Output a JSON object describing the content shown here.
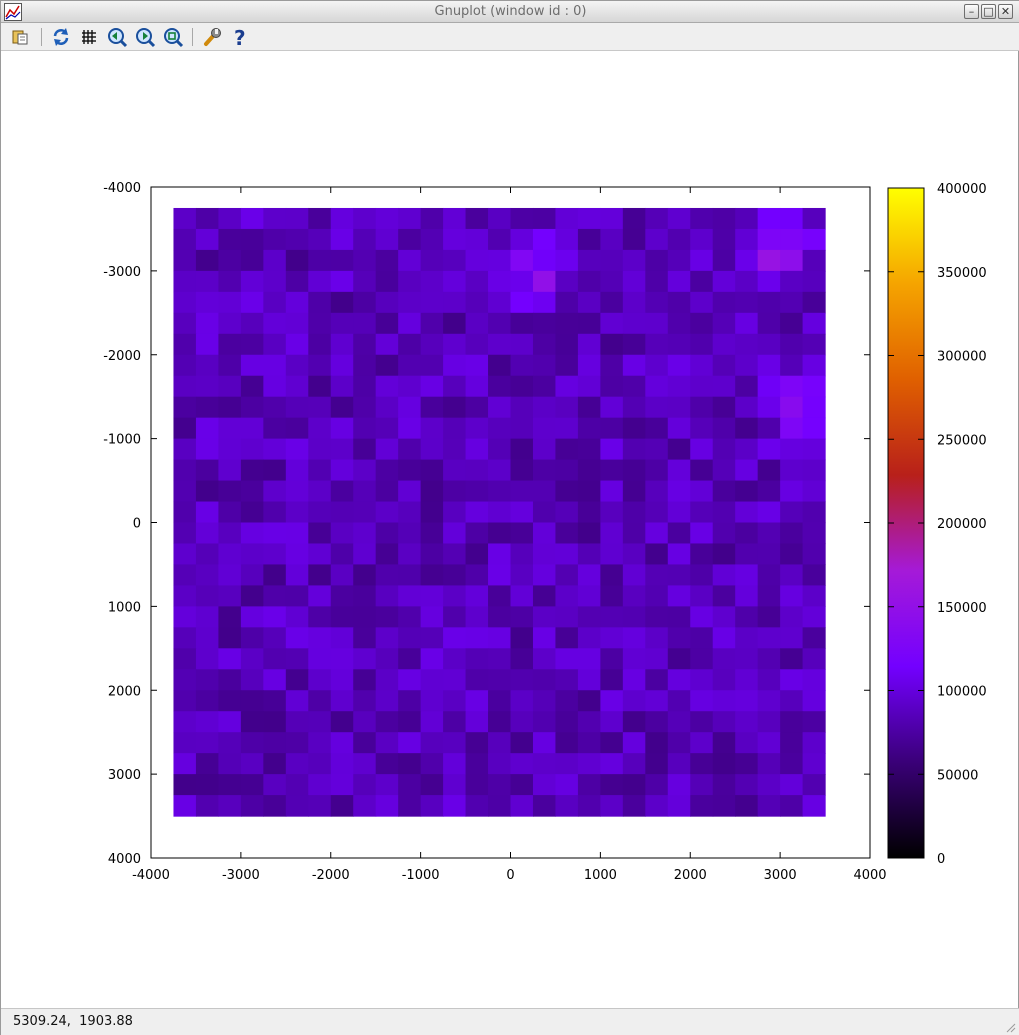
{
  "window": {
    "title": "Gnuplot (window id : 0)",
    "controls": {
      "minimize": "–",
      "maximize": "□",
      "close": "✕"
    }
  },
  "toolbar": {
    "items": [
      {
        "name": "copy-to-clipboard-button",
        "icon": "clipboard-icon"
      },
      {
        "name": "replot-button",
        "icon": "refresh-icon"
      },
      {
        "name": "toggle-grid-button",
        "icon": "grid-icon"
      },
      {
        "name": "previous-zoom-button",
        "icon": "zoom-previous-icon"
      },
      {
        "name": "next-zoom-button",
        "icon": "zoom-next-icon"
      },
      {
        "name": "autoscale-button",
        "icon": "zoom-autoscale-icon"
      },
      {
        "name": "preferences-button",
        "icon": "wrench-icon"
      },
      {
        "name": "help-button",
        "icon": "question-icon"
      }
    ]
  },
  "status": {
    "coordinates": "5309.24,  1903.88"
  },
  "chart_data": {
    "type": "heatmap",
    "title": "",
    "xlabel": "",
    "ylabel": "",
    "xlim": [
      -4000,
      4000
    ],
    "ylim": [
      -4000,
      4000
    ],
    "y_axis_reversed": true,
    "x_ticks": [
      "-4000",
      "-3000",
      "-2000",
      "-1000",
      "0",
      "1000",
      "2000",
      "3000",
      "4000"
    ],
    "y_ticks": [
      "-4000",
      "-3000",
      "-2000",
      "-1000",
      "0",
      "1000",
      "2000",
      "3000",
      "4000"
    ],
    "grid": false,
    "data_extent": {
      "x": [
        -3750,
        3500
      ],
      "y": [
        -3750,
        3500
      ]
    },
    "grid_size": [
      29,
      29
    ],
    "value_range_estimate": [
      50000,
      160000
    ],
    "typical_value": 85000,
    "hot_spots": [
      {
        "x": 300,
        "y": -3000,
        "value": 140000
      },
      {
        "x": 3000,
        "y": -3200,
        "value": 150000
      },
      {
        "x": 3200,
        "y": -1400,
        "value": 130000
      }
    ],
    "colorbar": {
      "range": [
        0,
        400000
      ],
      "ticks": [
        "0",
        "50000",
        "100000",
        "150000",
        "200000",
        "250000",
        "300000",
        "350000",
        "400000"
      ],
      "palette": [
        "#000000",
        "#3a0078",
        "#7300ff",
        "#a51ad8",
        "#b8201a",
        "#e06000",
        "#f5a400",
        "#ffff00"
      ]
    },
    "legend": {
      "placement": "top-right"
    }
  }
}
